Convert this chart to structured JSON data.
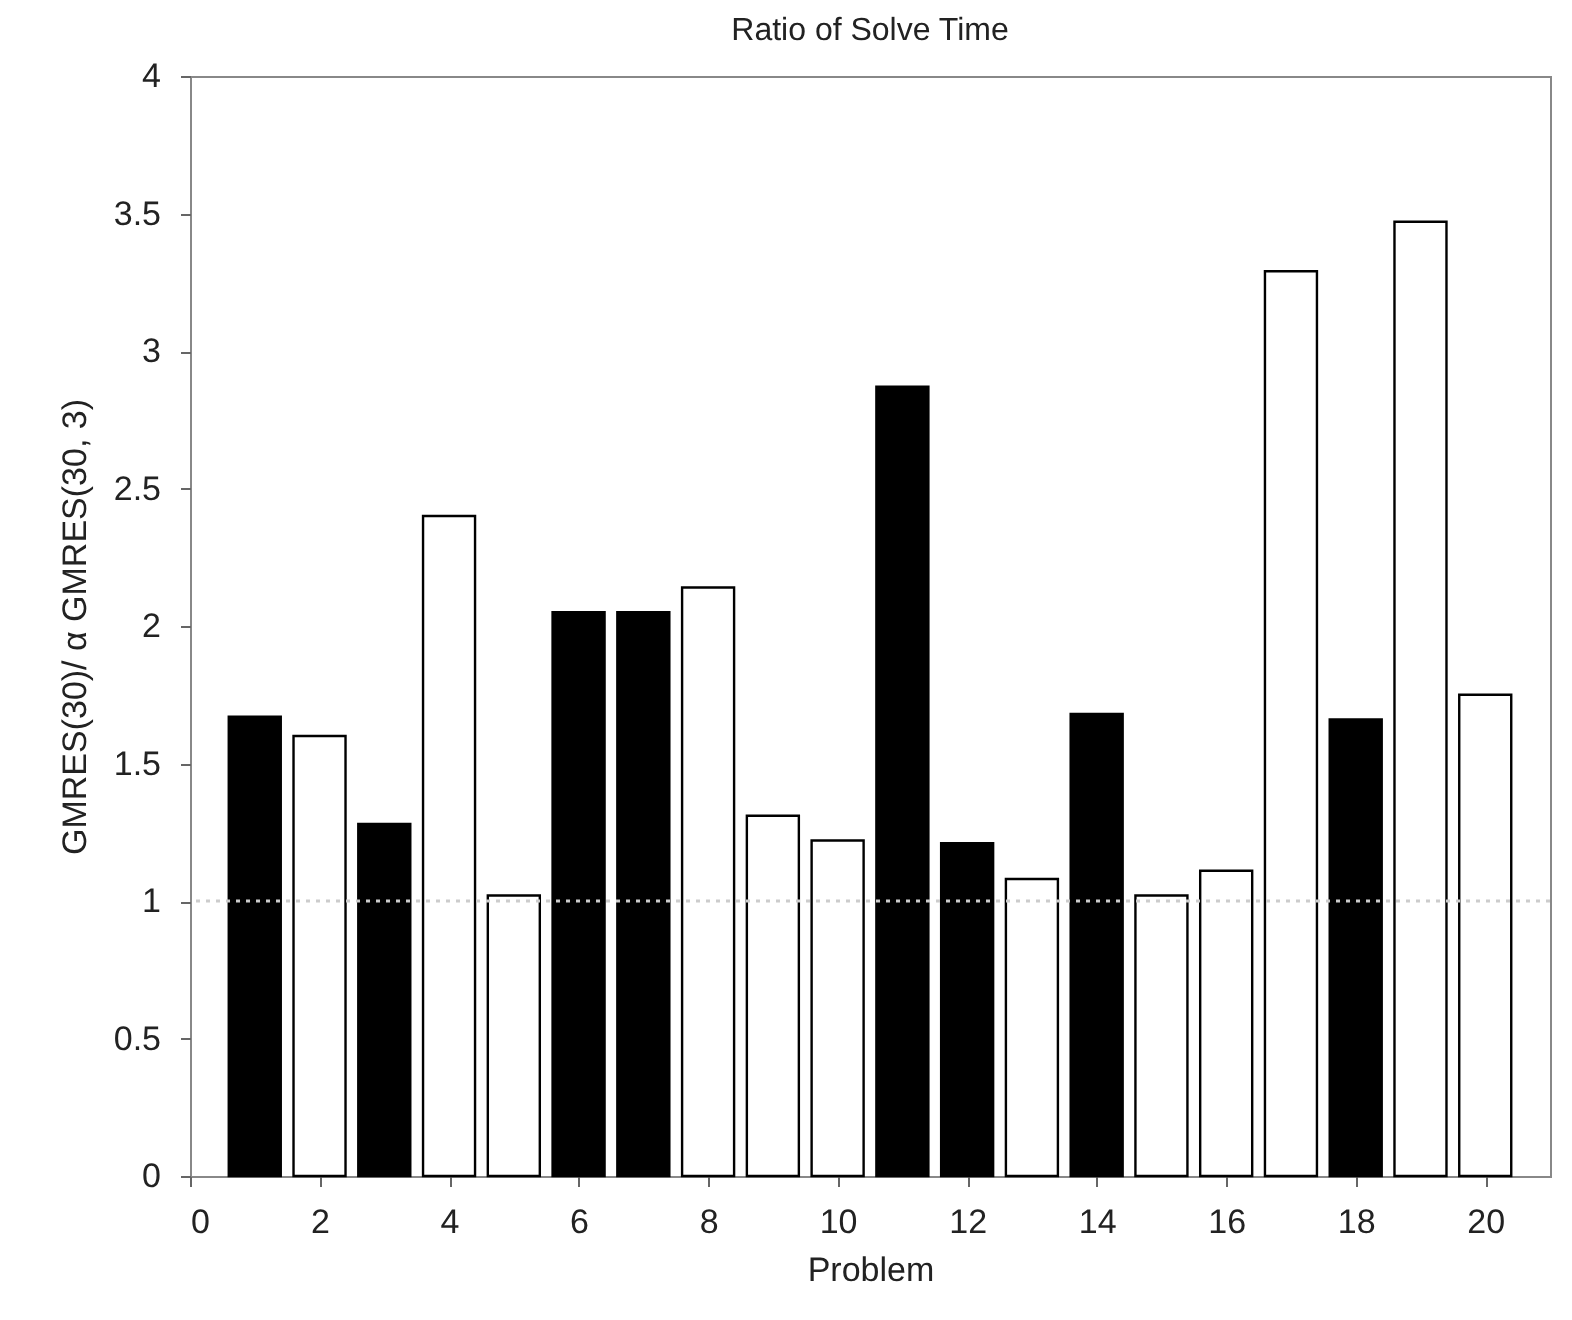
{
  "chart_data": {
    "type": "bar",
    "title": "Ratio of Solve Time",
    "xlabel": "Problem",
    "ylabel": "GMRES(30)/ α GMRES(30, 3)",
    "x": [
      1,
      2,
      3,
      4,
      5,
      6,
      7,
      8,
      9,
      10,
      11,
      12,
      13,
      14,
      15,
      16,
      17,
      18,
      19,
      20
    ],
    "values": [
      1.67,
      1.6,
      1.28,
      2.4,
      1.02,
      2.05,
      2.05,
      2.14,
      1.31,
      1.22,
      2.87,
      1.21,
      1.08,
      1.68,
      1.02,
      1.11,
      3.29,
      1.66,
      3.47,
      1.75
    ],
    "colors": [
      "#000000",
      "#ffffff",
      "#000000",
      "#ffffff",
      "#ffffff",
      "#000000",
      "#000000",
      "#ffffff",
      "#ffffff",
      "#ffffff",
      "#000000",
      "#000000",
      "#ffffff",
      "#000000",
      "#ffffff",
      "#ffffff",
      "#ffffff",
      "#000000",
      "#ffffff",
      "#ffffff"
    ],
    "xlim": [
      0,
      21
    ],
    "xticks": [
      0,
      2,
      4,
      6,
      8,
      10,
      12,
      14,
      16,
      18,
      20
    ],
    "ylim": [
      0,
      4
    ],
    "yticks": [
      0,
      0.5,
      1,
      1.5,
      2,
      2.5,
      3,
      3.5,
      4
    ],
    "ref_lines": [
      {
        "axis": "y",
        "value": 1,
        "color": "#cccccc",
        "line_style": "dotted"
      }
    ],
    "grid": false
  }
}
